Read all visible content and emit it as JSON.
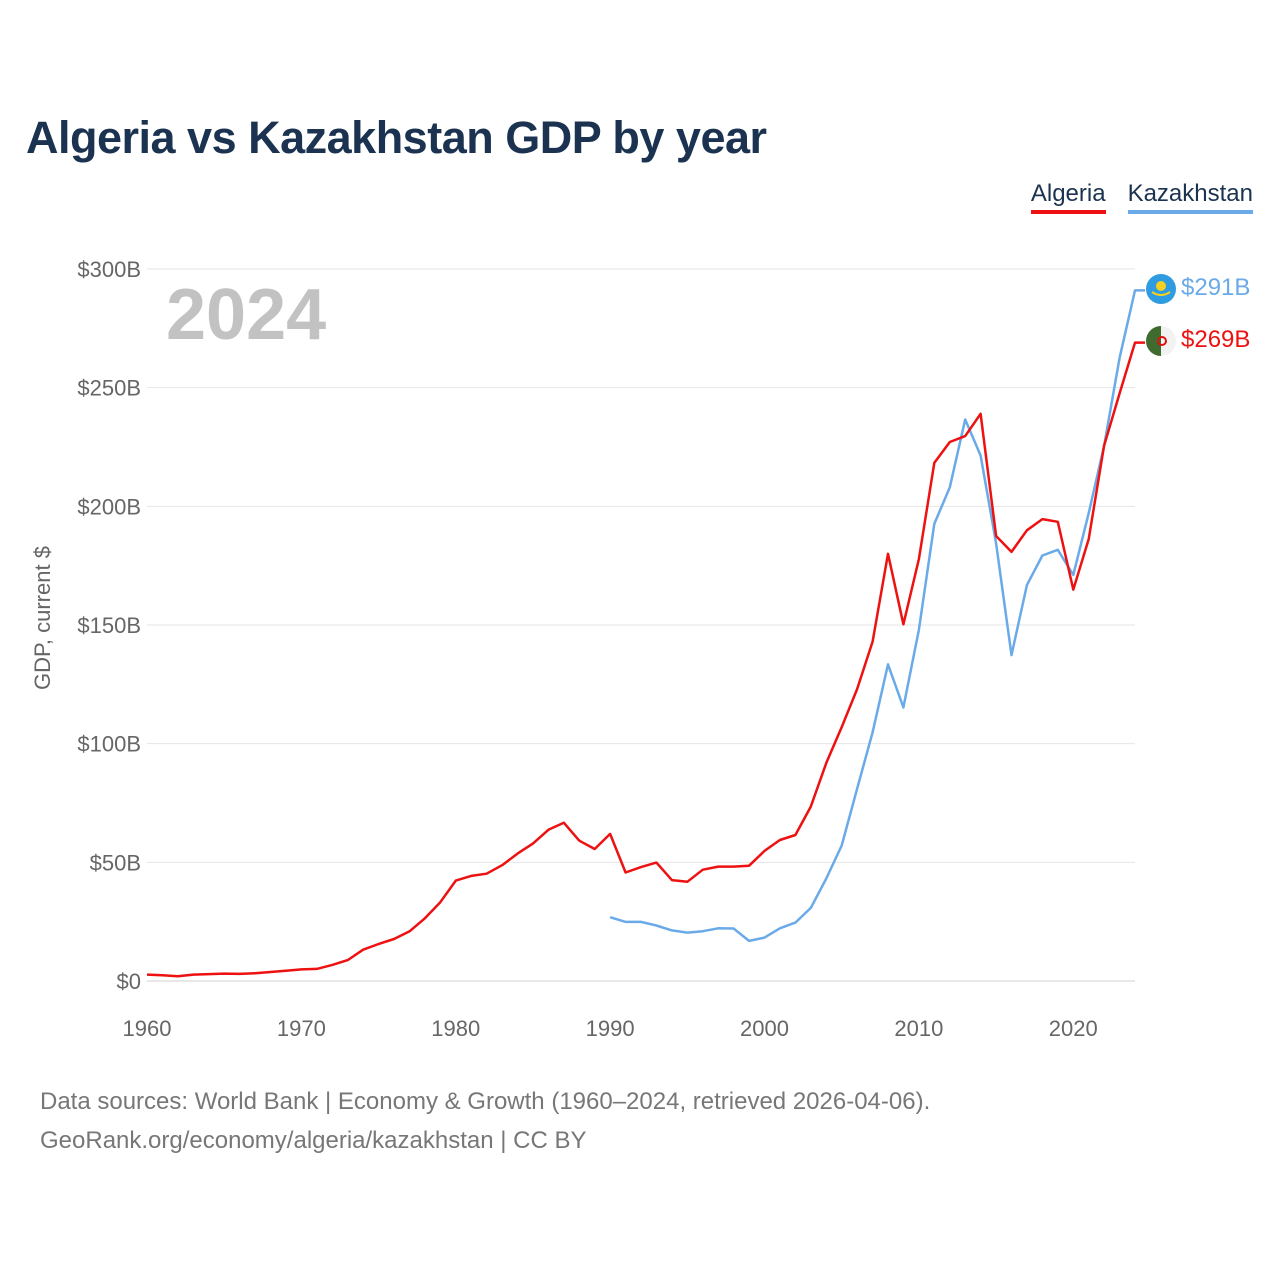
{
  "title": "Algeria vs Kazakhstan GDP by year",
  "footer": {
    "line1": "Data sources: World Bank | Economy & Growth (1960–2024, retrieved 2026-04-06).",
    "line2": "GeoRank.org/economy/algeria/kazakhstan | CC BY"
  },
  "colors": {
    "algeria": "#ee1111",
    "kazakhstan": "#6aaae8",
    "grid": "#e6e6e6",
    "text": "#666666",
    "title": "#1b3350"
  },
  "chart_data": {
    "type": "line",
    "title": "Algeria vs Kazakhstan GDP by year",
    "xlabel": "",
    "ylabel": "GDP, current $",
    "year_label": "2024",
    "xlim": [
      1960,
      2024
    ],
    "ylim": [
      0,
      300
    ],
    "unit": "billion USD",
    "x_ticks": [
      1960,
      1970,
      1980,
      1990,
      2000,
      2010,
      2020
    ],
    "y_ticks": [
      0,
      50,
      100,
      150,
      200,
      250,
      300
    ],
    "y_tick_labels": [
      "$0",
      "$50B",
      "$100B",
      "$150B",
      "$200B",
      "$250B",
      "$300B"
    ],
    "legend": [
      "Algeria",
      "Kazakhstan"
    ],
    "series": [
      {
        "name": "Algeria",
        "color": "#ee1111",
        "end_label": "$269B",
        "x": [
          1960,
          1961,
          1962,
          1963,
          1964,
          1965,
          1966,
          1967,
          1968,
          1969,
          1970,
          1971,
          1972,
          1973,
          1974,
          1975,
          1976,
          1977,
          1978,
          1979,
          1980,
          1981,
          1982,
          1983,
          1984,
          1985,
          1986,
          1987,
          1988,
          1989,
          1990,
          1991,
          1992,
          1993,
          1994,
          1995,
          1996,
          1997,
          1998,
          1999,
          2000,
          2001,
          2002,
          2003,
          2004,
          2005,
          2006,
          2007,
          2008,
          2009,
          2010,
          2011,
          2012,
          2013,
          2014,
          2015,
          2016,
          2017,
          2018,
          2019,
          2020,
          2021,
          2022,
          2023,
          2024
        ],
        "values": [
          2.7,
          2.4,
          2.0,
          2.7,
          2.9,
          3.1,
          3.0,
          3.3,
          3.8,
          4.3,
          4.9,
          5.1,
          6.8,
          8.8,
          13.2,
          15.6,
          17.7,
          20.9,
          26.4,
          33.2,
          42.3,
          44.3,
          45.2,
          48.8,
          53.7,
          57.9,
          63.7,
          66.7,
          59.1,
          55.6,
          62.0,
          45.7,
          48.0,
          49.9,
          42.5,
          41.8,
          46.9,
          48.2,
          48.2,
          48.6,
          54.8,
          59.4,
          61.5,
          73.5,
          91.9,
          107.0,
          123.0,
          143.0,
          180.0,
          150.3,
          177.8,
          218.3,
          227.1,
          229.6,
          239.0,
          187.5,
          180.8,
          189.9,
          194.6,
          193.5,
          164.9,
          186.2,
          225.6,
          247.6,
          269.0
        ]
      },
      {
        "name": "Kazakhstan",
        "color": "#6aaae8",
        "end_label": "$291B",
        "x": [
          1990,
          1991,
          1992,
          1993,
          1994,
          1995,
          1996,
          1997,
          1998,
          1999,
          2000,
          2001,
          2002,
          2003,
          2004,
          2005,
          2006,
          2007,
          2008,
          2009,
          2010,
          2011,
          2012,
          2013,
          2014,
          2015,
          2016,
          2017,
          2018,
          2019,
          2020,
          2021,
          2022,
          2023,
          2024
        ],
        "values": [
          26.9,
          24.9,
          24.9,
          23.4,
          21.3,
          20.4,
          21.0,
          22.2,
          22.1,
          16.9,
          18.3,
          22.2,
          24.6,
          30.8,
          43.2,
          57.1,
          81.0,
          104.8,
          133.4,
          115.3,
          148.0,
          192.6,
          208.0,
          236.6,
          221.4,
          184.4,
          137.3,
          166.8,
          179.3,
          181.7,
          171.1,
          197.1,
          225.5,
          262.6,
          291.0
        ]
      }
    ]
  }
}
